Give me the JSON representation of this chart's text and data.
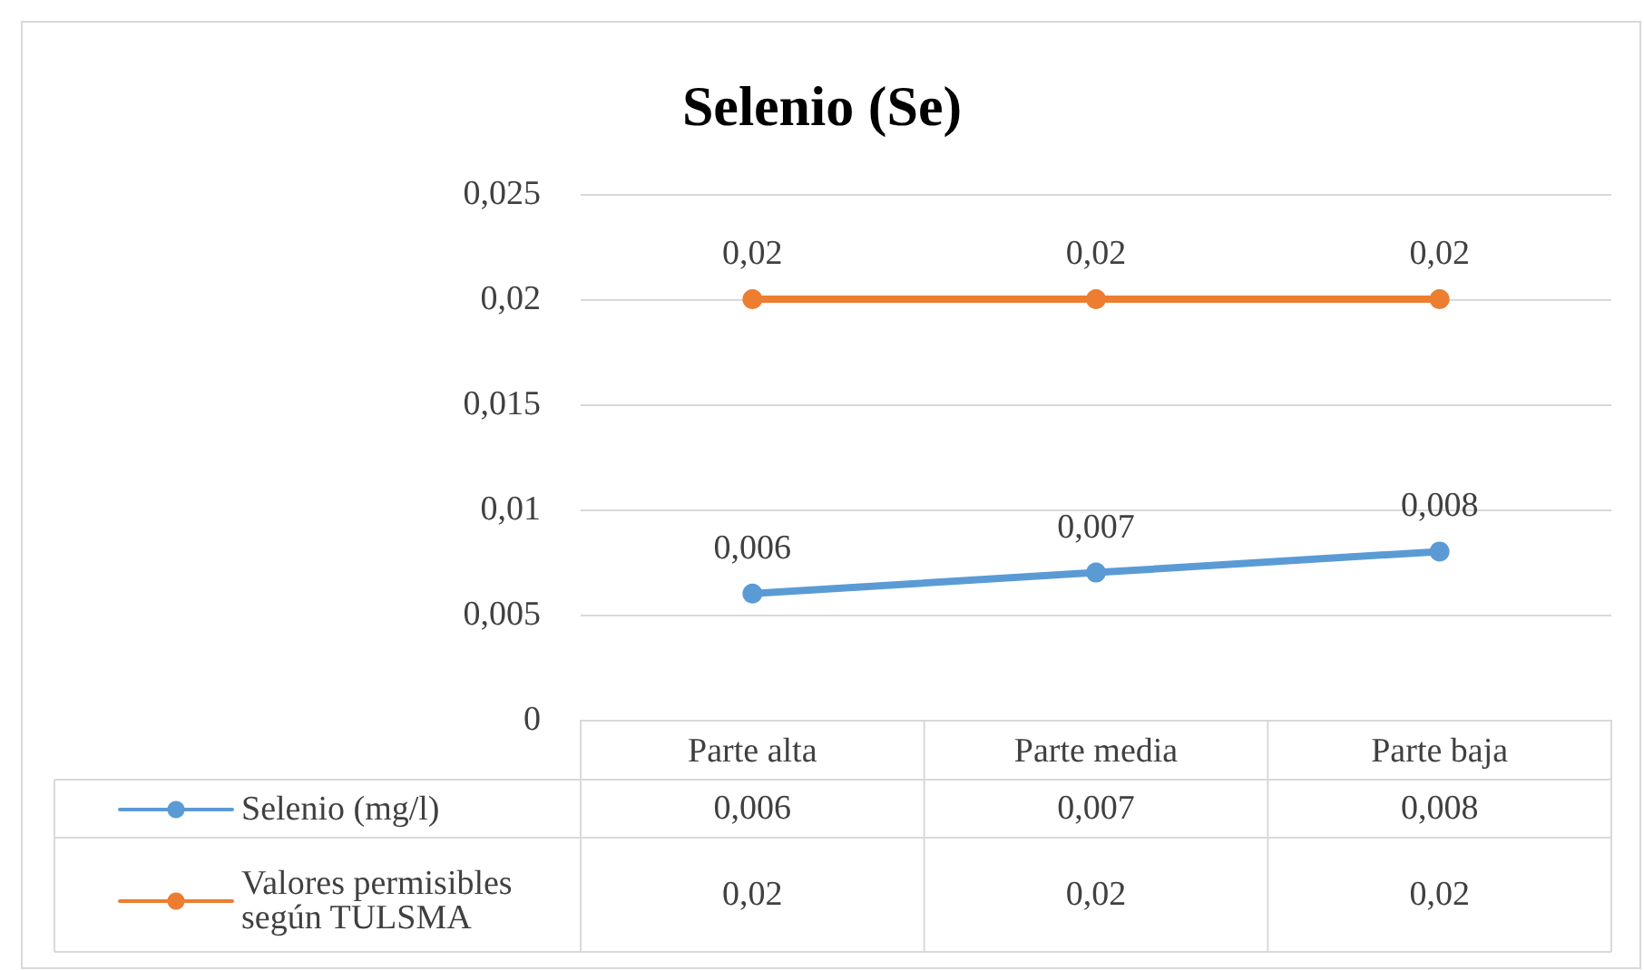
{
  "chart_data": {
    "type": "line",
    "title": "Selenio (Se)",
    "categories": [
      "Parte alta",
      "Parte media",
      "Parte baja"
    ],
    "series": [
      {
        "name": "Selenio (mg/l)",
        "color": "#5b9bd5",
        "values": [
          0.006,
          0.007,
          0.008
        ],
        "value_labels": [
          "0,006",
          "0,007",
          "0,008"
        ]
      },
      {
        "name": "Valores permisibles según TULSMA",
        "color": "#ed7d31",
        "values": [
          0.02,
          0.02,
          0.02
        ],
        "value_labels": [
          "0,02",
          "0,02",
          "0,02"
        ]
      }
    ],
    "ylim": [
      0,
      0.025
    ],
    "yticks": [
      {
        "value": 0,
        "label": "0"
      },
      {
        "value": 0.005,
        "label": "0,005"
      },
      {
        "value": 0.01,
        "label": "0,01"
      },
      {
        "value": 0.015,
        "label": "0,015"
      },
      {
        "value": 0.02,
        "label": "0,02"
      },
      {
        "value": 0.025,
        "label": "0,025"
      }
    ],
    "grid": "y",
    "marker": "circle",
    "line_style": "solid",
    "legend": "bottom left"
  }
}
